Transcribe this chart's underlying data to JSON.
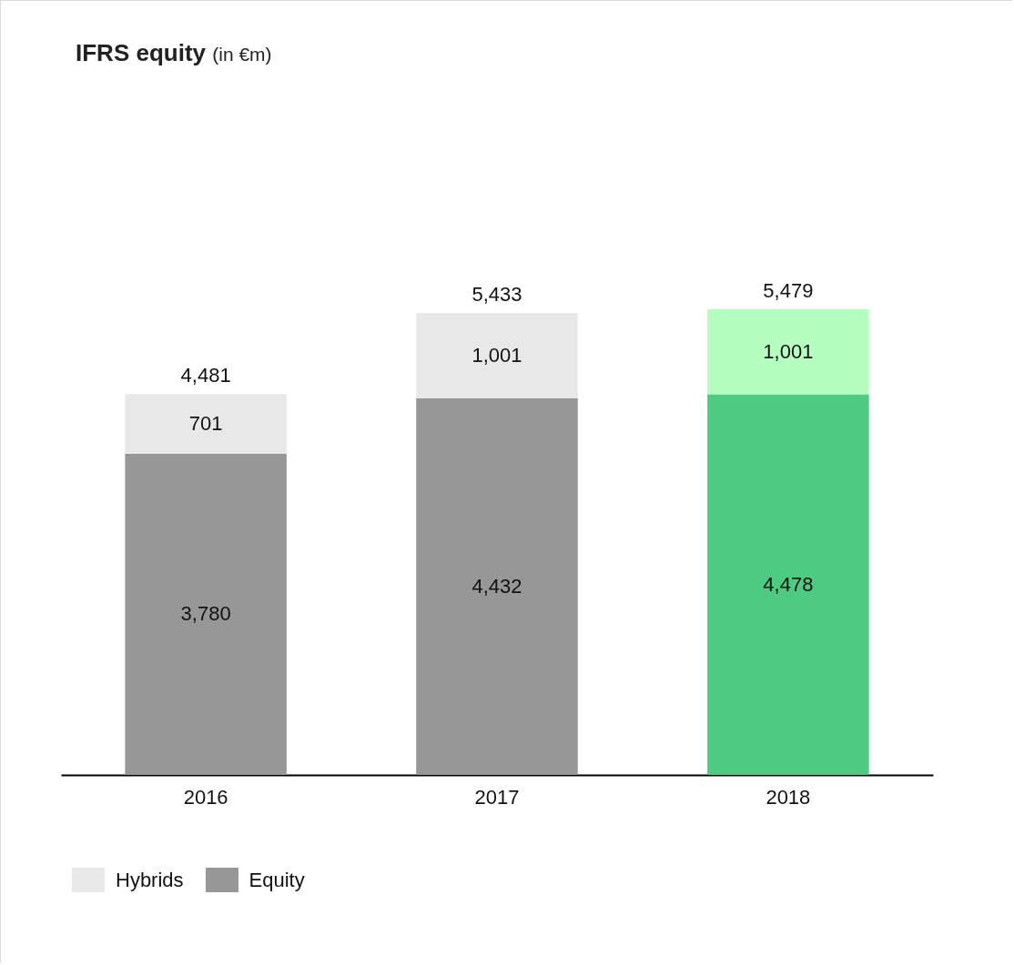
{
  "chart_data": {
    "type": "bar",
    "title": "IFRS equity",
    "subtitle": "(in €m)",
    "categories": [
      "2016",
      "2017",
      "2018"
    ],
    "stacked": true,
    "legend": "bottom",
    "grid": false,
    "series": [
      {
        "name": "Equity",
        "color": "#979797",
        "colors": [
          "#979797",
          "#979797",
          "#4ecb82"
        ],
        "values": [
          3780,
          4432,
          4478
        ],
        "value_labels": [
          "3,780",
          "4,432",
          "4,478"
        ]
      },
      {
        "name": "Hybrids",
        "color": "#e8e8e8",
        "colors": [
          "#e8e8e8",
          "#e8e8e8",
          "#b6fdc0"
        ],
        "values": [
          701,
          1001,
          1001
        ],
        "value_labels": [
          "701",
          "1,001",
          "1,001"
        ]
      }
    ],
    "totals": [
      "4,481",
      "5,433",
      "5,479"
    ]
  }
}
